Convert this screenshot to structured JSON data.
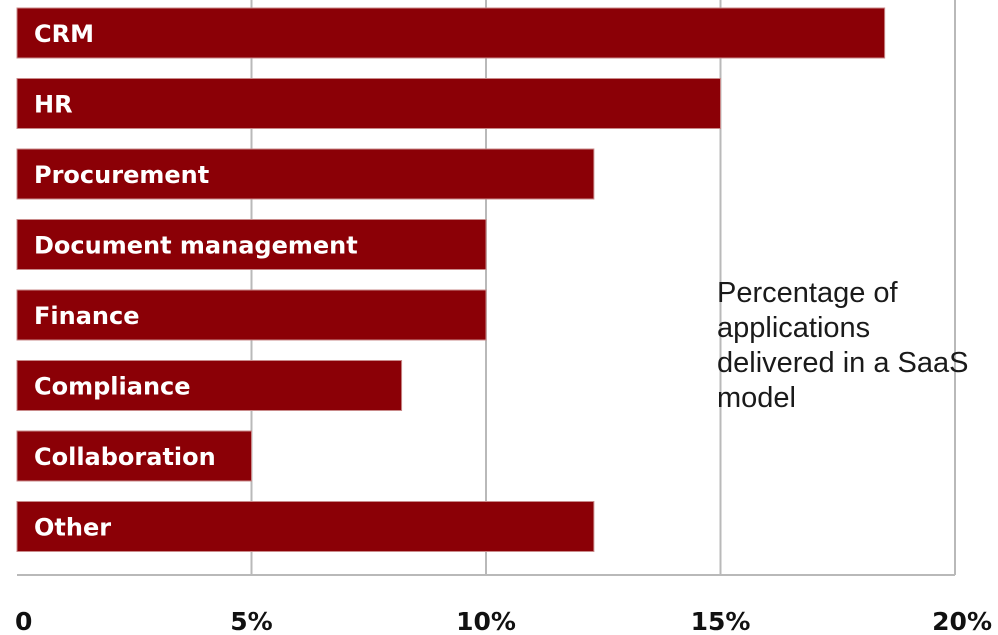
{
  "chart_data": {
    "type": "bar",
    "orientation": "horizontal",
    "categories": [
      "CRM",
      "HR",
      "Procurement",
      "Document management",
      "Finance",
      "Compliance",
      "Collaboration",
      "Other"
    ],
    "values": [
      18.5,
      15,
      12.3,
      10,
      10,
      8.2,
      5,
      12.3
    ],
    "xlim": [
      0,
      20
    ],
    "ticks": [
      0,
      5,
      10,
      15,
      20
    ],
    "tick_labels": [
      "0",
      "5%",
      "10%",
      "15%",
      "20%"
    ],
    "annotation": "Percentage of applications delivered in a SaaS model",
    "grid": true,
    "colors": {
      "bar": "#8b0006",
      "grid": "#b9b9b9"
    }
  }
}
